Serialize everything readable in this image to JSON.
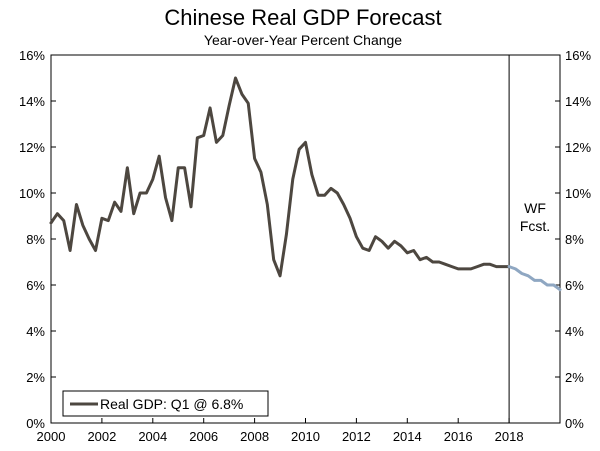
{
  "chart_data": {
    "type": "line",
    "title": "Chinese Real GDP Forecast",
    "subtitle": "Year-over-Year Percent Change",
    "xlim": [
      2000,
      2020
    ],
    "ylim": [
      0,
      16
    ],
    "x_ticks": [
      2000,
      2002,
      2004,
      2006,
      2008,
      2010,
      2012,
      2014,
      2016,
      2018
    ],
    "x_tick_labels": [
      "2000",
      "2002",
      "2004",
      "2006",
      "2008",
      "2010",
      "2012",
      "2014",
      "2016",
      "2018"
    ],
    "y_ticks": [
      0,
      2,
      4,
      6,
      8,
      10,
      12,
      14,
      16
    ],
    "y_tick_labels": [
      "0%",
      "2%",
      "4%",
      "6%",
      "8%",
      "10%",
      "12%",
      "14%",
      "16%"
    ],
    "grid": false,
    "legend_placement": "bottom-left",
    "forecast_line_x": 2018,
    "forecast_label_lines": [
      "WF",
      "Fcst."
    ],
    "series": [
      {
        "name": "Real GDP: Q1 @ 6.8%",
        "color": "#4d4740",
        "x": [
          2000.0,
          2000.25,
          2000.5,
          2000.75,
          2001.0,
          2001.25,
          2001.5,
          2001.75,
          2002.0,
          2002.25,
          2002.5,
          2002.75,
          2003.0,
          2003.25,
          2003.5,
          2003.75,
          2004.0,
          2004.25,
          2004.5,
          2004.75,
          2005.0,
          2005.25,
          2005.5,
          2005.75,
          2006.0,
          2006.25,
          2006.5,
          2006.75,
          2007.0,
          2007.25,
          2007.5,
          2007.75,
          2008.0,
          2008.25,
          2008.5,
          2008.75,
          2009.0,
          2009.25,
          2009.5,
          2009.75,
          2010.0,
          2010.25,
          2010.5,
          2010.75,
          2011.0,
          2011.25,
          2011.5,
          2011.75,
          2012.0,
          2012.25,
          2012.5,
          2012.75,
          2013.0,
          2013.25,
          2013.5,
          2013.75,
          2014.0,
          2014.25,
          2014.5,
          2014.75,
          2015.0,
          2015.25,
          2015.5,
          2015.75,
          2016.0,
          2016.25,
          2016.5,
          2016.75,
          2017.0,
          2017.25,
          2017.5,
          2017.75,
          2018.0
        ],
        "values": [
          8.7,
          9.1,
          8.8,
          7.5,
          9.5,
          8.6,
          8.0,
          7.5,
          8.9,
          8.8,
          9.6,
          9.2,
          11.1,
          9.1,
          10.0,
          10.0,
          10.6,
          11.6,
          9.8,
          8.8,
          11.1,
          11.1,
          9.4,
          12.4,
          12.5,
          13.7,
          12.2,
          12.5,
          13.8,
          15.0,
          14.3,
          13.9,
          11.5,
          10.9,
          9.5,
          7.1,
          6.4,
          8.2,
          10.6,
          11.9,
          12.2,
          10.8,
          9.9,
          9.9,
          10.2,
          10.0,
          9.5,
          8.9,
          8.1,
          7.6,
          7.5,
          8.1,
          7.9,
          7.6,
          7.9,
          7.7,
          7.4,
          7.5,
          7.1,
          7.2,
          7.0,
          7.0,
          6.9,
          6.8,
          6.7,
          6.7,
          6.7,
          6.8,
          6.9,
          6.9,
          6.8,
          6.8,
          6.8
        ]
      },
      {
        "name": "WF Fcst.",
        "color": "#8fa7c2",
        "x": [
          2018.0,
          2018.25,
          2018.5,
          2018.75,
          2019.0,
          2019.25,
          2019.5,
          2019.75,
          2020.0
        ],
        "values": [
          6.8,
          6.7,
          6.5,
          6.4,
          6.2,
          6.2,
          6.0,
          6.0,
          5.8
        ]
      }
    ]
  }
}
